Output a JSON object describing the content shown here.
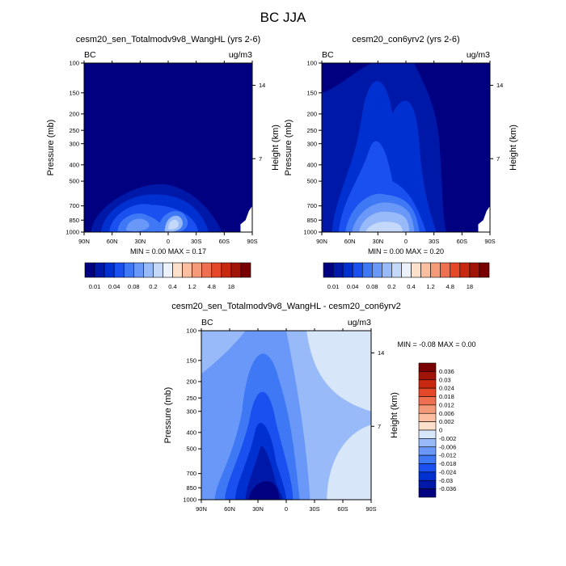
{
  "figure": {
    "title": "BC JJA"
  },
  "chart_data": [
    {
      "type": "heatmap",
      "panel": "top-left",
      "title": "cesm20_sen_Totalmodv9v8_WangHL (yrs 2-6)",
      "left_string": "BC",
      "right_string": "ug/m3",
      "ylabel": "Pressure (mb)",
      "y2label": "Height (km)",
      "x_ticks": [
        "90N",
        "60N",
        "30N",
        "0",
        "30S",
        "60S",
        "90S"
      ],
      "y_ticks": [
        "100",
        "150",
        "200",
        "250",
        "300",
        "400",
        "500",
        "700",
        "850",
        "1000"
      ],
      "y2_ticks": [
        "14",
        "7"
      ],
      "ylim": [
        1000,
        100
      ],
      "stats": "MIN =   0.00   MAX =    0.17",
      "colorbar": {
        "orientation": "horizontal",
        "labels": [
          "0.01",
          "0.04",
          "0.08",
          "0.2",
          "0.4",
          "1.2",
          "4.8",
          "18"
        ],
        "colors": [
          "#000080",
          "#0018a8",
          "#0030d0",
          "#1a50f0",
          "#3f78f5",
          "#6a98f8",
          "#98baf8",
          "#c4d8fa",
          "#ecf2fc",
          "#fde0cc",
          "#fbbea0",
          "#f59a78",
          "#ee7050",
          "#e44828",
          "#c82810",
          "#a01408",
          "#780000"
        ]
      }
    },
    {
      "type": "heatmap",
      "panel": "top-right",
      "title": "cesm20_con6yrv2 (yrs 2-6)",
      "left_string": "BC",
      "right_string": "ug/m3",
      "ylabel": "Pressure (mb)",
      "y2label": "Height (km)",
      "x_ticks": [
        "90N",
        "60N",
        "30N",
        "0",
        "30S",
        "60S",
        "90S"
      ],
      "y_ticks": [
        "100",
        "150",
        "200",
        "250",
        "300",
        "400",
        "500",
        "700",
        "850",
        "1000"
      ],
      "y2_ticks": [
        "14",
        "7"
      ],
      "ylim": [
        1000,
        100
      ],
      "stats": "MIN =   0.00   MAX =    0.20",
      "colorbar": {
        "orientation": "horizontal",
        "labels": [
          "0.01",
          "0.04",
          "0.08",
          "0.2",
          "0.4",
          "1.2",
          "4.8",
          "18"
        ],
        "colors": [
          "#000080",
          "#0018a8",
          "#0030d0",
          "#1a50f0",
          "#3f78f5",
          "#6a98f8",
          "#98baf8",
          "#c4d8fa",
          "#ecf2fc",
          "#fde0cc",
          "#fbbea0",
          "#f59a78",
          "#ee7050",
          "#e44828",
          "#c82810",
          "#a01408",
          "#780000"
        ]
      }
    },
    {
      "type": "heatmap",
      "panel": "bottom",
      "title": "cesm20_sen_Totalmodv9v8_WangHL - cesm20_con6yrv2",
      "left_string": "BC",
      "right_string": "ug/m3",
      "ylabel": "Pressure (mb)",
      "y2label": "Height (km)",
      "x_ticks": [
        "90N",
        "60N",
        "30N",
        "0",
        "30S",
        "60S",
        "90S"
      ],
      "y_ticks": [
        "100",
        "150",
        "200",
        "250",
        "300",
        "400",
        "500",
        "700",
        "850",
        "1000"
      ],
      "y2_ticks": [
        "14",
        "7"
      ],
      "ylim": [
        1000,
        100
      ],
      "stats": "MIN =  -0.08   MAX =    0.00",
      "colorbar": {
        "orientation": "vertical",
        "labels": [
          "0.036",
          "0.03",
          "0.024",
          "0.018",
          "0.012",
          "0.006",
          "0.002",
          "0",
          "-0.002",
          "-0.006",
          "-0.012",
          "-0.018",
          "-0.024",
          "-0.03",
          "-0.036"
        ],
        "colors": [
          "#780000",
          "#a01408",
          "#c82810",
          "#e44828",
          "#ee7050",
          "#f59a78",
          "#fbbea0",
          "#fde0cc",
          "#d8e6fa",
          "#98baf8",
          "#6a98f8",
          "#3f78f5",
          "#1a50f0",
          "#0030d0",
          "#0018a8",
          "#000080"
        ]
      }
    }
  ]
}
